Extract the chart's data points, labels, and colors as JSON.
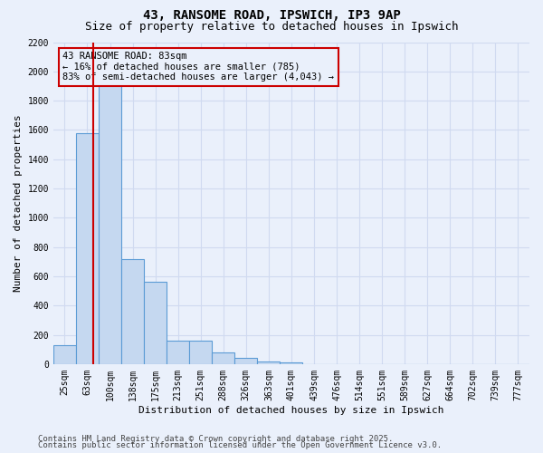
{
  "title1": "43, RANSOME ROAD, IPSWICH, IP3 9AP",
  "title2": "Size of property relative to detached houses in Ipswich",
  "xlabel": "Distribution of detached houses by size in Ipswich",
  "ylabel": "Number of detached properties",
  "categories": [
    "25sqm",
    "63sqm",
    "100sqm",
    "138sqm",
    "175sqm",
    "213sqm",
    "251sqm",
    "288sqm",
    "326sqm",
    "363sqm",
    "401sqm",
    "439sqm",
    "476sqm",
    "514sqm",
    "551sqm",
    "589sqm",
    "627sqm",
    "664sqm",
    "702sqm",
    "739sqm",
    "777sqm"
  ],
  "values": [
    130,
    1580,
    1960,
    720,
    560,
    160,
    160,
    80,
    40,
    20,
    10,
    0,
    0,
    0,
    0,
    0,
    0,
    0,
    0,
    0,
    0
  ],
  "bar_color": "#c5d8f0",
  "bar_edgecolor": "#5b9bd5",
  "vline_x_idx": 1.25,
  "vline_color": "#cc0000",
  "annotation_line1": "43 RANSOME ROAD: 83sqm",
  "annotation_line2": "← 16% of detached houses are smaller (785)",
  "annotation_line3": "83% of semi-detached houses are larger (4,043) →",
  "annotation_box_color": "#cc0000",
  "ylim": [
    0,
    2200
  ],
  "yticks": [
    0,
    200,
    400,
    600,
    800,
    1000,
    1200,
    1400,
    1600,
    1800,
    2000,
    2200
  ],
  "background_color": "#eaf0fb",
  "grid_color": "#d0daf0",
  "footer1": "Contains HM Land Registry data © Crown copyright and database right 2025.",
  "footer2": "Contains public sector information licensed under the Open Government Licence v3.0.",
  "title_fontsize": 10,
  "subtitle_fontsize": 9,
  "axis_label_fontsize": 8,
  "tick_fontsize": 7,
  "footer_fontsize": 6.5
}
